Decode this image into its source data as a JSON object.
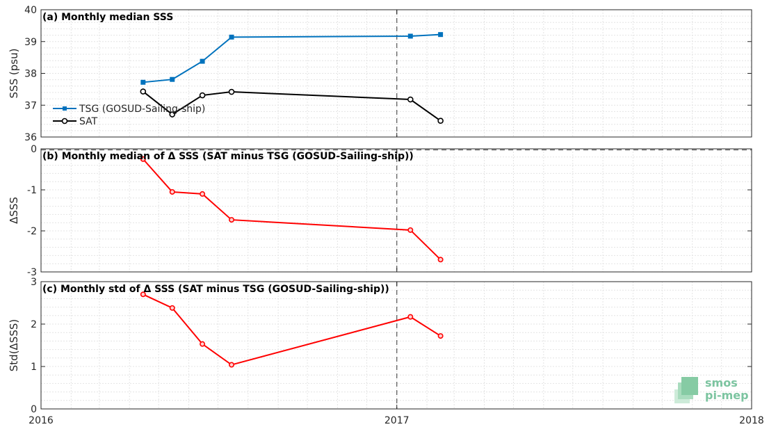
{
  "chart_data": [
    {
      "type": "line",
      "title": "(a) Monthly median SSS",
      "ylabel": "SSS (psu)",
      "ylim": [
        36,
        40
      ],
      "yticks": [
        36,
        37,
        38,
        39,
        40
      ],
      "xlim": [
        "2016-01-01",
        "2018-01-01"
      ],
      "xticks": [
        {
          "date": "2016-01-01",
          "label": "2016"
        },
        {
          "date": "2017-01-01",
          "label": "2017"
        },
        {
          "date": "2018-01-01",
          "label": "2018"
        }
      ],
      "grid": true,
      "legend": "middle-left",
      "series": [
        {
          "name": "TSG (GOSUD-Sailing-ship)",
          "color": "#0072bd",
          "marker": "filled-square",
          "x": [
            "2016-04-15",
            "2016-05-15",
            "2016-06-15",
            "2016-07-15",
            "2017-01-15",
            "2017-02-15"
          ],
          "y": [
            37.72,
            37.81,
            38.38,
            39.14,
            39.17,
            39.22
          ]
        },
        {
          "name": "SAT",
          "color": "#000000",
          "marker": "open-circle",
          "x": [
            "2016-04-15",
            "2016-05-15",
            "2016-06-15",
            "2016-07-15",
            "2017-01-15",
            "2017-02-15"
          ],
          "y": [
            37.43,
            36.71,
            37.31,
            37.42,
            37.18,
            36.51
          ]
        }
      ]
    },
    {
      "type": "line",
      "title": "(b) Monthly median of Δ SSS (SAT minus TSG (GOSUD-Sailing-ship))",
      "ylabel": "ΔSSS",
      "ylim": [
        -3,
        0
      ],
      "yticks": [
        -3,
        -2,
        -1,
        0
      ],
      "ytick_labels": [
        "-3",
        "-2",
        "-1",
        "0"
      ],
      "xlim": [
        "2016-01-01",
        "2018-01-01"
      ],
      "grid": true,
      "reference_line": 0,
      "series": [
        {
          "color": "#ff0000",
          "x": [
            "2016-04-15",
            "2016-05-15",
            "2016-06-15",
            "2016-07-15",
            "2017-01-15",
            "2017-02-15"
          ],
          "y": [
            -0.25,
            -1.05,
            -1.1,
            -1.73,
            -1.98,
            -2.7
          ]
        }
      ]
    },
    {
      "type": "line",
      "title": "(c) Monthly std of Δ SSS (SAT minus TSG (GOSUD-Sailing-ship))",
      "ylabel": "Std(ΔSSS)",
      "ylim": [
        0,
        3
      ],
      "yticks": [
        0,
        1,
        2,
        3
      ],
      "xlim": [
        "2016-01-01",
        "2018-01-01"
      ],
      "xticks": [
        {
          "date": "2016-01-01",
          "label": "2016"
        },
        {
          "date": "2017-01-01",
          "label": "2017"
        },
        {
          "date": "2018-01-01",
          "label": "2018"
        }
      ],
      "grid": true,
      "series": [
        {
          "color": "#ff0000",
          "x": [
            "2016-04-15",
            "2016-05-15",
            "2016-06-15",
            "2016-07-15",
            "2017-01-15",
            "2017-02-15"
          ],
          "y": [
            2.7,
            2.38,
            1.53,
            1.04,
            2.17,
            1.72
          ]
        }
      ]
    }
  ],
  "vertical_marker": "2017-01-01",
  "logo": {
    "line1": "smos",
    "line2": "pi-mep"
  }
}
